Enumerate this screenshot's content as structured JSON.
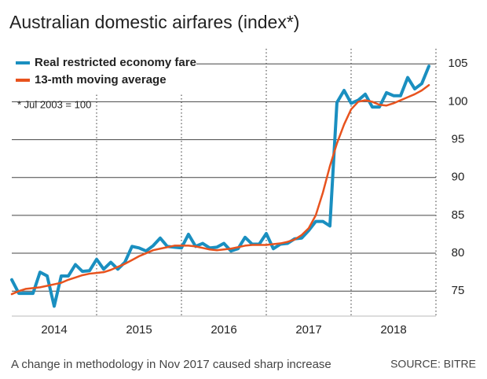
{
  "chart_data": {
    "type": "line",
    "title": "Australian domestic airfares (index*)",
    "annotation": "* Jul 2003 = 100",
    "caption": "A change in methodology in Nov 2017 caused sharp increase",
    "source": "SOURCE: BITRE",
    "x": [
      2014,
      2014.083,
      2014.167,
      2014.25,
      2014.333,
      2014.417,
      2014.5,
      2014.583,
      2014.667,
      2014.75,
      2014.833,
      2014.917,
      2015,
      2015.083,
      2015.167,
      2015.25,
      2015.333,
      2015.417,
      2015.5,
      2015.583,
      2015.667,
      2015.75,
      2015.833,
      2015.917,
      2016,
      2016.083,
      2016.167,
      2016.25,
      2016.333,
      2016.417,
      2016.5,
      2016.583,
      2016.667,
      2016.75,
      2016.833,
      2016.917,
      2017,
      2017.083,
      2017.167,
      2017.25,
      2017.333,
      2017.417,
      2017.5,
      2017.583,
      2017.667,
      2017.75,
      2017.833,
      2017.917,
      2018,
      2018.083,
      2018.167,
      2018.25,
      2018.333,
      2018.417,
      2018.5,
      2018.583,
      2018.667,
      2018.75,
      2018.833,
      2018.917
    ],
    "series": [
      {
        "name": "Real restricted economy fare",
        "color": "#1a8fc0",
        "width": 4,
        "values": [
          76.5,
          74.7,
          74.7,
          74.7,
          77.5,
          77.0,
          73.0,
          77.0,
          77.0,
          78.5,
          77.6,
          77.7,
          79.2,
          77.9,
          78.8,
          77.9,
          78.8,
          80.9,
          80.7,
          80.3,
          81.0,
          82.0,
          80.9,
          80.8,
          80.7,
          82.5,
          80.9,
          81.3,
          80.7,
          80.8,
          81.3,
          80.3,
          80.6,
          82.1,
          81.2,
          81.2,
          82.6,
          80.6,
          81.2,
          81.3,
          81.9,
          82.0,
          83.0,
          84.2,
          84.2,
          83.6,
          99.9,
          101.5,
          99.8,
          100.2,
          101.0,
          99.3,
          99.3,
          101.2,
          100.8,
          100.8,
          103.2,
          101.7,
          102.4,
          104.7
        ]
      },
      {
        "name": "13-mth moving average",
        "color": "#e8531e",
        "width": 2.5,
        "values": [
          74.6,
          75.0,
          75.3,
          75.4,
          75.5,
          75.7,
          75.9,
          76.1,
          76.5,
          76.8,
          77.1,
          77.3,
          77.4,
          77.5,
          77.8,
          78.2,
          78.6,
          79.1,
          79.6,
          80.0,
          80.4,
          80.6,
          80.8,
          81.0,
          81.0,
          81.0,
          80.9,
          80.7,
          80.5,
          80.4,
          80.5,
          80.6,
          80.8,
          81.0,
          81.1,
          81.1,
          81.1,
          81.2,
          81.3,
          81.5,
          81.8,
          82.4,
          83.3,
          85.0,
          88.0,
          91.5,
          94.5,
          97.0,
          99.0,
          100.0,
          100.2,
          100.0,
          99.6,
          99.5,
          99.8,
          100.2,
          100.6,
          101.0,
          101.5,
          102.2
        ]
      }
    ],
    "xlim": [
      2014,
      2019
    ],
    "xticks": [
      {
        "value": 2014.5,
        "label": "2014"
      },
      {
        "value": 2015.5,
        "label": "2015"
      },
      {
        "value": 2016.5,
        "label": "2016"
      },
      {
        "value": 2017.5,
        "label": "2017"
      },
      {
        "value": 2018.5,
        "label": "2018"
      }
    ],
    "ylim": [
      71.7,
      107
    ],
    "yticks": [
      75,
      80,
      85,
      90,
      95,
      100,
      105
    ],
    "grid": true
  }
}
